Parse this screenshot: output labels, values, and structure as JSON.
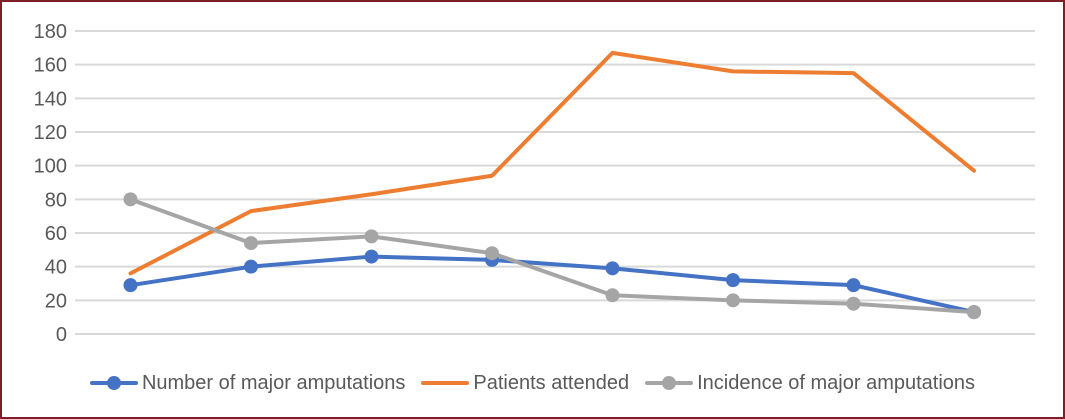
{
  "frame": {
    "border_color": "#7e1e26",
    "background_color": "#ffffff"
  },
  "chart_data": {
    "type": "line",
    "title": "",
    "xlabel": "",
    "ylabel": "",
    "x_tick_labels_visible": false,
    "num_points": 8,
    "series": [
      {
        "name": "Number of major amputations",
        "color": "#4472C4",
        "marker": "circle",
        "values": [
          29,
          40,
          46,
          44,
          39,
          32,
          29,
          13
        ]
      },
      {
        "name": "Patients attended",
        "color": "#ED7D31",
        "marker": "none",
        "values": [
          36,
          73,
          83,
          94,
          167,
          156,
          155,
          97
        ]
      },
      {
        "name": "Incidence of major amputations",
        "color": "#A5A5A5",
        "marker": "circle",
        "values": [
          80,
          54,
          58,
          48,
          23,
          20,
          18,
          13
        ]
      }
    ],
    "ylim": [
      0,
      180
    ],
    "y_tick_step": 20,
    "y_tick_labels": [
      "0",
      "20",
      "40",
      "60",
      "80",
      "100",
      "120",
      "140",
      "160",
      "180"
    ],
    "grid": true,
    "gridline_color": "#D9D9D9",
    "axis_label_color": "#595959",
    "legend_position": "bottom"
  }
}
